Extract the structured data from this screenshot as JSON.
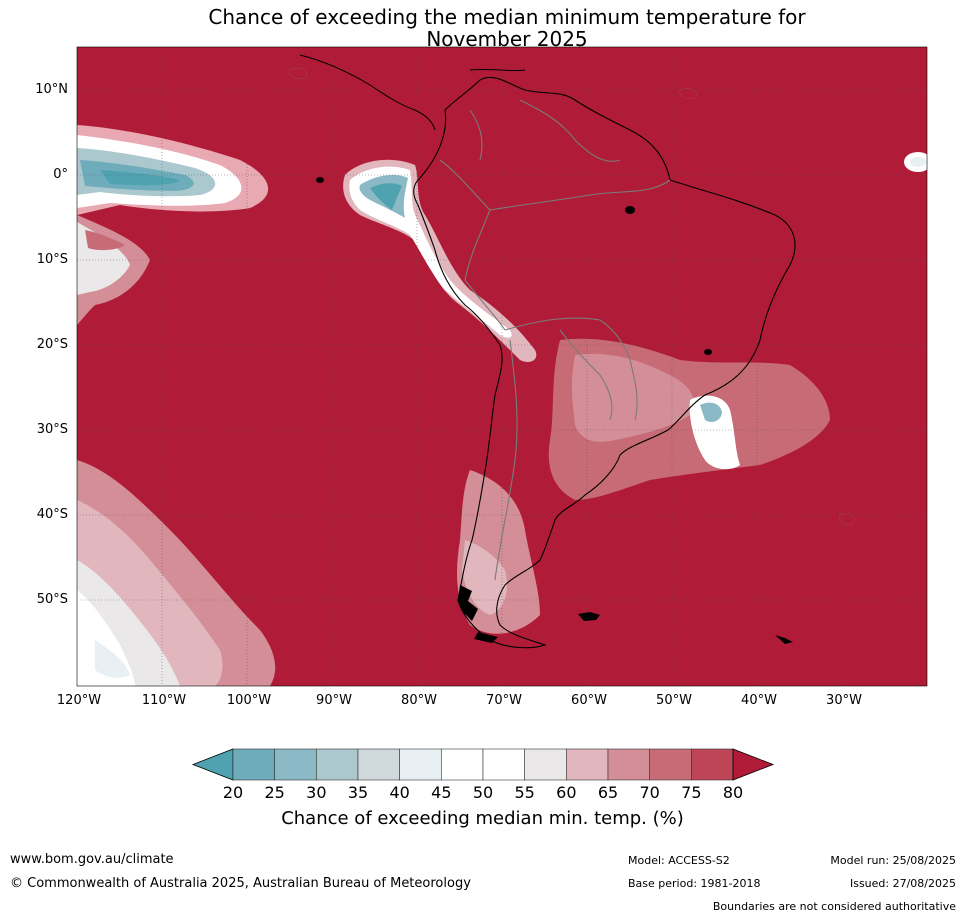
{
  "title": {
    "line1": "Chance of exceeding the median minimum temperature for",
    "line2": "November 2025"
  },
  "map": {
    "region": "South America",
    "base_color": "#b01c37",
    "lat_labels": [
      "10°N",
      "0°",
      "10°S",
      "20°S",
      "30°S",
      "40°S",
      "50°S"
    ],
    "lon_labels": [
      "120°W",
      "110°W",
      "100°W",
      "90°W",
      "80°W",
      "70°W",
      "60°W",
      "50°W",
      "40°W",
      "30°W"
    ]
  },
  "colorbar": {
    "title": "Chance of exceeding median min. temp. (%)",
    "ticks": [
      "20",
      "25",
      "30",
      "35",
      "40",
      "45",
      "50",
      "55",
      "60",
      "65",
      "70",
      "75",
      "80"
    ],
    "colors": [
      "#4fa3b1",
      "#6eacbb",
      "#8cb9c6",
      "#aac8cd",
      "#d0d9dc",
      "#e9f0f3",
      "#ffffff",
      "#ffffff",
      "#eae8e9",
      "#e1b7bd",
      "#d48e98",
      "#c76b77",
      "#bd4556",
      "#b01c37"
    ]
  },
  "footer": {
    "url": "www.bom.gov.au/climate",
    "copyright": "© Commonwealth of Australia 2025, Australian Bureau of Meteorology",
    "model": "Model: ACCESS-S2",
    "base_period": "Base period: 1981-2018",
    "model_run": "Model run: 25/08/2025",
    "issued": "Issued: 27/08/2025",
    "disclaimer": "Boundaries are not considered authoritative"
  }
}
